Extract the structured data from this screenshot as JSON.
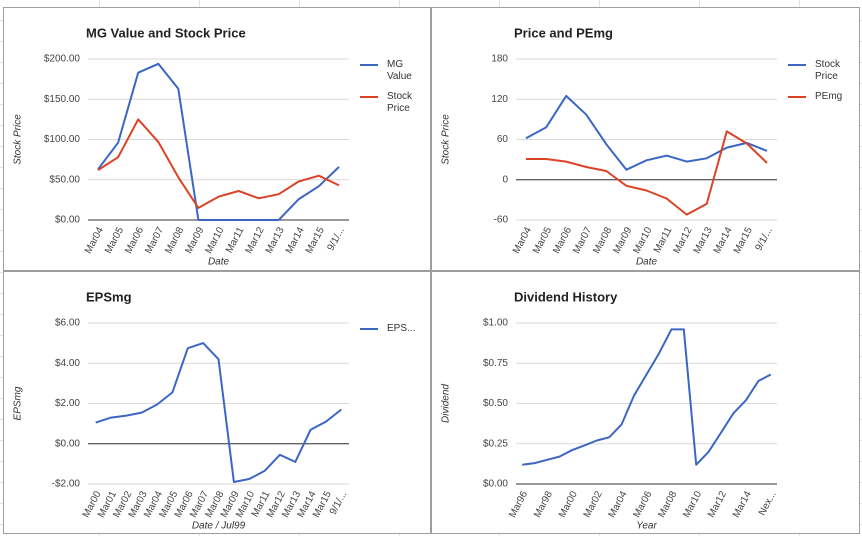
{
  "chart_data": [
    {
      "type": "line",
      "title": "MG Value and Stock Price",
      "x_label": "Date",
      "y_label": "Stock Price",
      "categories": [
        "Mar04",
        "Mar05",
        "Mar06",
        "Mar07",
        "Mar08",
        "Mar09",
        "Mar10",
        "Mar11",
        "Mar12",
        "Mar13",
        "Mar14",
        "Mar15",
        "9/1/..."
      ],
      "series": [
        {
          "name": "MG Value",
          "color": "#3c66c4",
          "values": [
            63,
            96,
            183,
            194,
            163,
            0,
            0,
            0,
            0,
            0,
            26,
            42,
            66
          ]
        },
        {
          "name": "Stock Price",
          "color": "#db4326",
          "values": [
            62,
            78,
            125,
            97,
            53,
            15,
            29,
            36,
            27,
            32,
            48,
            55,
            43
          ]
        }
      ],
      "ylim": [
        0,
        200
      ],
      "yticks": [
        {
          "value": 0,
          "label": "$0.00"
        },
        {
          "value": 50,
          "label": "$50.00"
        },
        {
          "value": 100,
          "label": "$100.00"
        },
        {
          "value": 150,
          "label": "$150.00"
        },
        {
          "value": 200,
          "label": "$200.00"
        }
      ],
      "grid": true,
      "legend": "right"
    },
    {
      "type": "line",
      "title": "Price and PEmg",
      "x_label": "Date",
      "y_label": "Stock Price",
      "categories": [
        "Mar04",
        "Mar05",
        "Mar06",
        "Mar07",
        "Mar08",
        "Mar09",
        "Mar10",
        "Mar11",
        "Mar12",
        "Mar13",
        "Mar14",
        "Mar15",
        "9/1/..."
      ],
      "series": [
        {
          "name": "Stock Price",
          "color": "#3c66c4",
          "values": [
            62,
            78,
            125,
            97,
            53,
            15,
            29,
            36,
            27,
            32,
            48,
            55,
            43
          ]
        },
        {
          "name": "PEmg",
          "color": "#db4326",
          "values": [
            31,
            31,
            27,
            19,
            13,
            -9,
            -16,
            -28,
            -52,
            -36,
            72,
            54,
            25
          ]
        }
      ],
      "ylim": [
        -60,
        180
      ],
      "yticks": [
        -60,
        0,
        60,
        120,
        180
      ],
      "grid": true,
      "legend": "right"
    },
    {
      "type": "line",
      "title": "EPSmg",
      "x_label": "Date / Jul99",
      "y_label": "EPSmg",
      "categories": [
        "Mar00",
        "Mar01",
        "Mar02",
        "Mar03",
        "Mar04",
        "Mar05",
        "Mar06",
        "Mar07",
        "Mar08",
        "Mar09",
        "Mar10",
        "Mar11",
        "Mar12",
        "Mar13",
        "Mar14",
        "Mar15",
        "9/1/..."
      ],
      "series": [
        {
          "name": "EPS...",
          "color": "#3c66c4",
          "values": [
            1.05,
            1.3,
            1.4,
            1.55,
            1.95,
            2.55,
            4.75,
            5.0,
            4.2,
            -1.9,
            -1.75,
            -1.35,
            -0.55,
            -0.9,
            0.7,
            1.1,
            1.7
          ]
        }
      ],
      "ylim": [
        -2,
        6
      ],
      "yticks": [
        {
          "value": -2,
          "label": "-$2.00"
        },
        {
          "value": 0,
          "label": "$0.00"
        },
        {
          "value": 2,
          "label": "$2.00"
        },
        {
          "value": 4,
          "label": "$4.00"
        },
        {
          "value": 6,
          "label": "$6.00"
        }
      ],
      "grid": true,
      "legend": "right"
    },
    {
      "type": "line",
      "title": "Dividend History",
      "x_label": "Year",
      "y_label": "Dividend",
      "categories": [
        "Mar96",
        null,
        "Mar98",
        null,
        "Mar00",
        null,
        "Mar02",
        null,
        "Mar04",
        null,
        "Mar06",
        null,
        "Mar08",
        null,
        "Mar10",
        null,
        "Mar12",
        null,
        "Mar14",
        null,
        "Nex..."
      ],
      "series": [
        {
          "color": "#3c66c4",
          "values": [
            0.12,
            0.13,
            0.15,
            0.17,
            0.21,
            0.24,
            0.27,
            0.29,
            0.37,
            0.55,
            0.68,
            0.81,
            0.96,
            0.96,
            0.12,
            0.2,
            0.32,
            0.44,
            0.52,
            0.64,
            0.68
          ]
        }
      ],
      "ylim": [
        0,
        1
      ],
      "yticks": [
        {
          "value": 0,
          "label": "$0.00"
        },
        {
          "value": 0.25,
          "label": "$0.25"
        },
        {
          "value": 0.5,
          "label": "$0.50"
        },
        {
          "value": 0.75,
          "label": "$0.75"
        },
        {
          "value": 1,
          "label": "$1.00"
        }
      ],
      "grid": true
    }
  ]
}
